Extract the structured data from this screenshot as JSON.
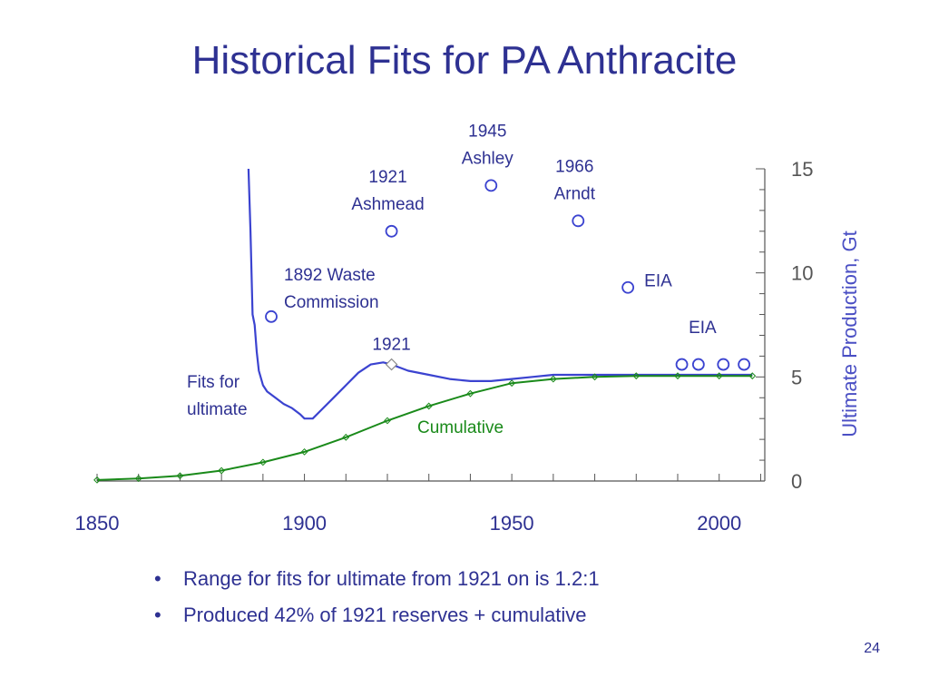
{
  "slide": {
    "title": "Historical Fits for PA Anthracite",
    "bullets": [
      "Range for fits for ultimate from 1921 on is 1.2:1",
      "Produced 42% of 1921 reserves + cumulative"
    ],
    "page_number": "24"
  },
  "colors": {
    "title": "#2e3192",
    "fit_line": "#3b43d0",
    "cumulative": "#1a8a1a",
    "axis": "#555555",
    "annotation": "#2e3192"
  },
  "chart_data": {
    "type": "line",
    "title": "",
    "xlabel": "",
    "ylabel": "Ultimate Production, Gt",
    "xlim": [
      1850,
      2011
    ],
    "ylim": [
      0,
      15
    ],
    "x_ticks": [
      1850,
      1900,
      1950,
      2000
    ],
    "y_ticks": [
      0,
      5,
      10,
      15
    ],
    "y_axis_side": "right",
    "grid": false,
    "series": [
      {
        "name": "Fits for ultimate",
        "label_lines": [
          "Fits for",
          "ultimate"
        ],
        "x": [
          1886.5,
          1887,
          1887.5,
          1888,
          1888.5,
          1889,
          1890,
          1891,
          1893,
          1895,
          1897,
          1899,
          1900,
          1902,
          1904,
          1907,
          1910,
          1913,
          1916,
          1919,
          1921,
          1925,
          1930,
          1935,
          1940,
          1945,
          1950,
          1955,
          1960,
          1970,
          1980,
          1990,
          2000,
          2008
        ],
        "y": [
          15.0,
          12.0,
          8.0,
          7.5,
          6.2,
          5.3,
          4.6,
          4.3,
          4.0,
          3.7,
          3.5,
          3.2,
          3.0,
          3.0,
          3.4,
          4.0,
          4.6,
          5.2,
          5.6,
          5.7,
          5.6,
          5.3,
          5.1,
          4.9,
          4.8,
          4.8,
          4.9,
          5.0,
          5.1,
          5.1,
          5.1,
          5.1,
          5.1,
          5.1
        ]
      },
      {
        "name": "Cumulative",
        "label_lines": [
          "Cumulative"
        ],
        "x": [
          1850,
          1860,
          1870,
          1880,
          1890,
          1900,
          1910,
          1920,
          1930,
          1940,
          1950,
          1960,
          1970,
          1980,
          1990,
          2000,
          2008
        ],
        "y": [
          0.05,
          0.12,
          0.25,
          0.5,
          0.9,
          1.4,
          2.1,
          2.9,
          3.6,
          4.2,
          4.7,
          4.9,
          5.0,
          5.05,
          5.05,
          5.05,
          5.05
        ]
      }
    ],
    "estimates": [
      {
        "x": 1892,
        "y": 7.9,
        "label_lines": [
          "1892 Waste",
          "Commission"
        ]
      },
      {
        "x": 1921,
        "y": 12.0,
        "label_lines": [
          "1921",
          "Ashmead"
        ]
      },
      {
        "x": 1945,
        "y": 14.2,
        "label_lines": [
          "1945",
          "Ashley"
        ]
      },
      {
        "x": 1966,
        "y": 12.5,
        "label_lines": [
          "1966",
          "Arndt"
        ]
      },
      {
        "x": 1978,
        "y": 9.3,
        "label_lines": [
          "EIA"
        ]
      },
      {
        "x": 1991,
        "y": 5.6,
        "label_lines": []
      },
      {
        "x": 1995,
        "y": 5.6,
        "label_lines": []
      },
      {
        "x": 2001,
        "y": 5.6,
        "label_lines": []
      },
      {
        "x": 2006,
        "y": 5.6,
        "label_lines": []
      }
    ],
    "annotations": [
      {
        "text": "EIA",
        "x": 1996,
        "y": 7.1
      },
      {
        "text": "1921",
        "x": 1921,
        "y": 6.3,
        "marker": "diamond",
        "marker_y": 5.6
      }
    ]
  }
}
